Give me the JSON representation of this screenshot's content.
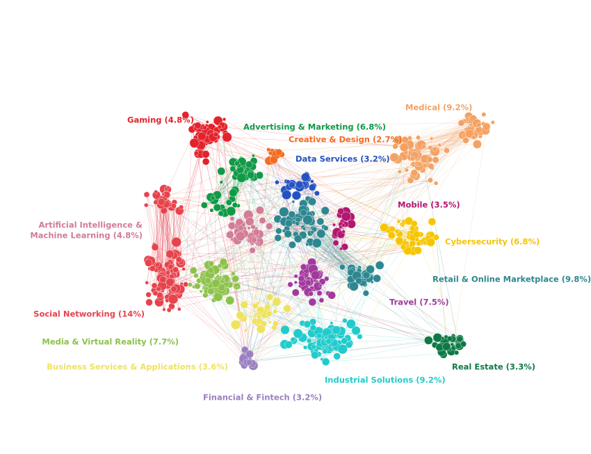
{
  "clusters": [
    {
      "label": "Gaming (4.8%)",
      "color": "#e3232c"
    },
    {
      "label": "Advertising & Marketing (6.8%)",
      "color": "#109a47"
    },
    {
      "label": "Creative & Design (2.7%)",
      "color": "#f26b21"
    },
    {
      "label": "Data Services (3.2%)",
      "color": "#2552c2"
    },
    {
      "label": "Medical (9.2%)",
      "color": "#f4a264"
    },
    {
      "label": "Mobile (3.5%)",
      "color": "#b3176f"
    },
    {
      "label": "Cybersecurity (6.8%)",
      "color": "#f6c500"
    },
    {
      "label": "Retail & Online Marketplace (9.8%)",
      "color": "#2e8790"
    },
    {
      "label": "Travel (7.5%)",
      "color": "#a13a9d"
    },
    {
      "label": "Social Networking (14%)",
      "color": "#e6434c"
    },
    {
      "label_lines": [
        "Artificial Intelligence &",
        "Machine Learning (4.8%)"
      ],
      "color": "#d27c96"
    },
    {
      "label": "Media & Virtual Reality (7.7%)",
      "color": "#8cc24a"
    },
    {
      "label": "Business Services & Applications (3.6%)",
      "color": "#efe25e"
    },
    {
      "label": "Financial & Fintech (3.2%)",
      "color": "#9a80c1"
    },
    {
      "label": "Industrial Solutions (9.2%)",
      "color": "#22cbcb"
    },
    {
      "label": "Real Estate (3.3%)",
      "color": "#0d7a45"
    }
  ]
}
